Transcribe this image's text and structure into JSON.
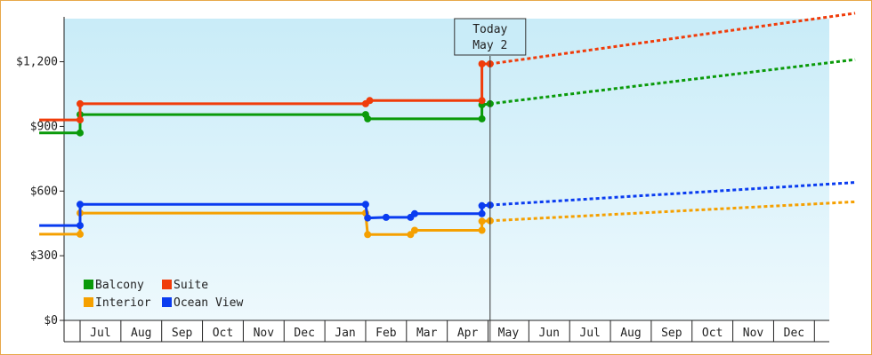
{
  "chart_data": {
    "type": "line",
    "title": "",
    "xlabel": "",
    "ylabel": "",
    "ylim": [
      0,
      1400
    ],
    "y_ticks": [
      {
        "value": 0,
        "label": "$0"
      },
      {
        "value": 300,
        "label": "$300"
      },
      {
        "value": 600,
        "label": "$600"
      },
      {
        "value": 900,
        "label": "$900"
      },
      {
        "value": 1200,
        "label": "$1,200"
      }
    ],
    "x_ticks": [
      "Jul",
      "Aug",
      "Sep",
      "Oct",
      "Nov",
      "Dec",
      "Jan",
      "Feb",
      "Mar",
      "Apr",
      "May",
      "Jun",
      "Jul",
      "Aug",
      "Sep",
      "Oct",
      "Nov",
      "Dec"
    ],
    "grid": false,
    "legend": "bottom-left",
    "today": {
      "line1": "Today",
      "line2": "May 2",
      "month_index": 10.05
    },
    "series": [
      {
        "name": "Balcony",
        "color": "#0a9a0a",
        "points": [
          [
            -1.0,
            870
          ],
          [
            0.0,
            870
          ],
          [
            0.0,
            955
          ],
          [
            7.0,
            955
          ],
          [
            7.05,
            935
          ],
          [
            9.85,
            935
          ],
          [
            9.85,
            1000
          ],
          [
            10.05,
            1005
          ]
        ],
        "forecast": [
          [
            10.05,
            1005
          ],
          [
            19.0,
            1210
          ]
        ]
      },
      {
        "name": "Suite",
        "color": "#f03c0a",
        "points": [
          [
            -1.0,
            930
          ],
          [
            0.0,
            930
          ],
          [
            0.0,
            1005
          ],
          [
            7.0,
            1005
          ],
          [
            7.1,
            1020
          ],
          [
            9.85,
            1020
          ],
          [
            9.85,
            1190
          ],
          [
            10.05,
            1190
          ]
        ],
        "forecast": [
          [
            10.05,
            1190
          ],
          [
            19.0,
            1425
          ]
        ]
      },
      {
        "name": "Interior",
        "color": "#f5a000",
        "points": [
          [
            -1.0,
            400
          ],
          [
            0.0,
            400
          ],
          [
            0.0,
            498
          ],
          [
            7.0,
            498
          ],
          [
            7.05,
            398
          ],
          [
            8.1,
            398
          ],
          [
            8.2,
            418
          ],
          [
            9.85,
            418
          ],
          [
            9.85,
            460
          ],
          [
            10.05,
            462
          ]
        ],
        "forecast": [
          [
            10.05,
            462
          ],
          [
            19.0,
            550
          ]
        ]
      },
      {
        "name": "Ocean View",
        "color": "#0a3cf0",
        "points": [
          [
            -1.0,
            440
          ],
          [
            0.0,
            440
          ],
          [
            0.0,
            538
          ],
          [
            7.0,
            538
          ],
          [
            7.05,
            475
          ],
          [
            7.5,
            478
          ],
          [
            8.1,
            478
          ],
          [
            8.2,
            495
          ],
          [
            9.85,
            495
          ],
          [
            9.85,
            532
          ],
          [
            10.05,
            535
          ]
        ],
        "forecast": [
          [
            10.05,
            535
          ],
          [
            19.0,
            640
          ]
        ]
      }
    ]
  }
}
